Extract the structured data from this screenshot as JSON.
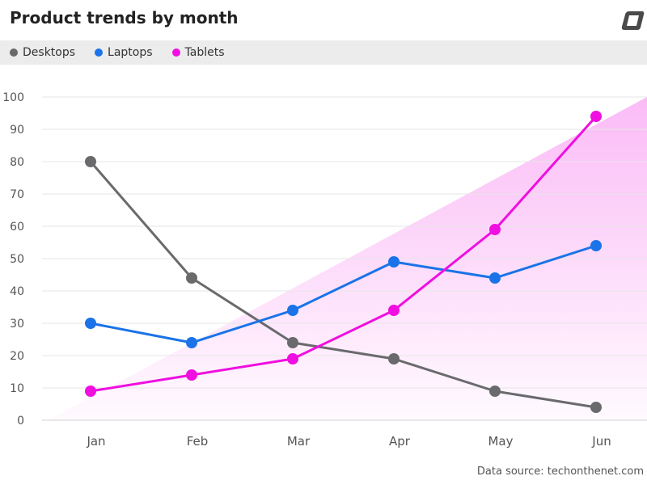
{
  "header": {
    "title": "Product trends by month"
  },
  "footer": {
    "source": "Data source: techonthenet.com"
  },
  "chart_data": {
    "type": "line",
    "title": "Product trends by month",
    "categories": [
      "Jan",
      "Feb",
      "Mar",
      "Apr",
      "May",
      "Jun"
    ],
    "ylim": [
      0,
      100
    ],
    "yticks": [
      0,
      10,
      20,
      30,
      40,
      50,
      60,
      70,
      80,
      90,
      100
    ],
    "grid": true,
    "legend_position": "top",
    "series": [
      {
        "name": "Desktops",
        "color": "#6a6a6d",
        "values": [
          80,
          44,
          24,
          19,
          9,
          4
        ]
      },
      {
        "name": "Laptops",
        "color": "#1a73e8",
        "values": [
          30,
          24,
          34,
          49,
          44,
          54
        ]
      },
      {
        "name": "Tablets",
        "color": "#f00ee0",
        "values": [
          9,
          14,
          19,
          34,
          59,
          94
        ]
      }
    ]
  }
}
